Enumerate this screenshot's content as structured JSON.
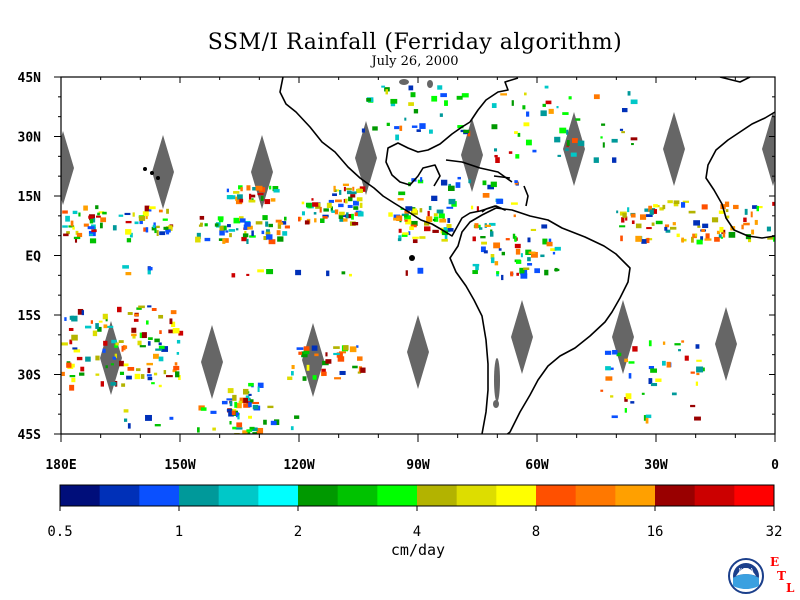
{
  "header": {
    "title": "SSM/I Rainfall (Ferriday algorithm)",
    "date": "July 26, 2000"
  },
  "map": {
    "lat_labels": [
      "45N",
      "30N",
      "15N",
      "EQ",
      "15S",
      "30S",
      "45S"
    ],
    "lat_values": [
      45,
      30,
      15,
      0,
      -15,
      -30,
      -45
    ],
    "lon_labels": [
      "180E",
      "150W",
      "120W",
      "90W",
      "60W",
      "30W",
      "0"
    ],
    "lon_values": [
      -180,
      -150,
      -120,
      -90,
      -60,
      -30,
      0
    ],
    "domain": {
      "lon": [
        -180,
        0
      ],
      "lat": [
        -45,
        45
      ]
    }
  },
  "colorbar": {
    "colors": [
      "#000e7a",
      "#0030b8",
      "#0a50ff",
      "#00999a",
      "#00c8c8",
      "#00ffff",
      "#009900",
      "#00c200",
      "#00ff00",
      "#b3b300",
      "#dddd00",
      "#ffff00",
      "#ff5000",
      "#ff7800",
      "#ffa000",
      "#990000",
      "#cc0000",
      "#ff0000"
    ],
    "tick_labels": [
      "0.5",
      "1",
      "2",
      "4",
      "8",
      "16",
      "32"
    ],
    "units": "cm/day"
  },
  "logo": {
    "letters": [
      "E",
      "T",
      "L"
    ],
    "badge": "NOAA",
    "accent": "#ff0000"
  }
}
